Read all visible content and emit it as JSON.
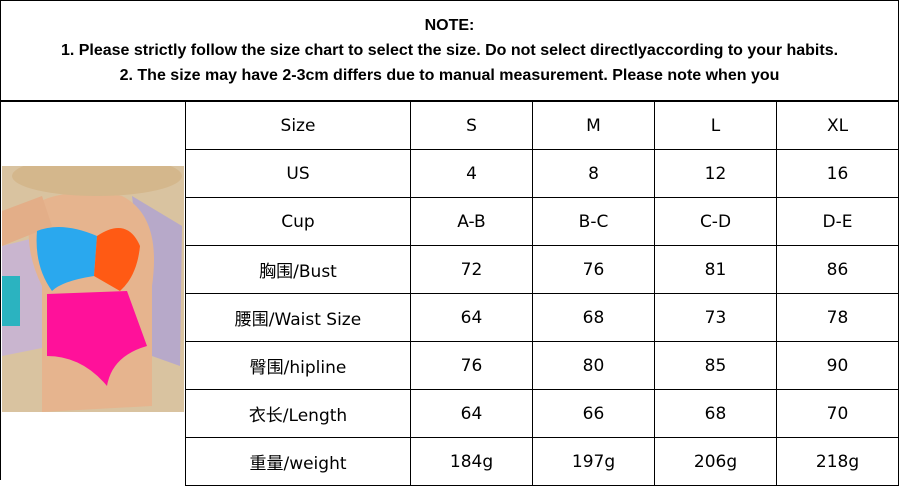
{
  "note": {
    "title": "NOTE:",
    "line1": "1. Please strictly follow the size chart to select the size. Do not select directlyaccording to your habits.",
    "line2": "2. The size may have 2-3cm differs due to manual measurement. Please note when you"
  },
  "photo": {
    "subject": "model-in-colorblock-swimsuit",
    "colors": {
      "blue": "#2aa8ee",
      "orange": "#ff5a14",
      "pink": "#ff119a",
      "sand": "#d9c3a0"
    }
  },
  "table": {
    "rows": [
      [
        "Size",
        "S",
        "M",
        "L",
        "XL"
      ],
      [
        "US",
        "4",
        "8",
        "12",
        "16"
      ],
      [
        "Cup",
        "A-B",
        "B-C",
        "C-D",
        "D-E"
      ],
      [
        "胸围/Bust",
        "72",
        "76",
        "81",
        "86"
      ],
      [
        "腰围/Waist Size",
        "64",
        "68",
        "73",
        "78"
      ],
      [
        "臀围/hipline",
        "76",
        "80",
        "85",
        "90"
      ],
      [
        "衣长/Length",
        "64",
        "66",
        "68",
        "70"
      ],
      [
        "重量/weight",
        "184g",
        "197g",
        "206g",
        "218g"
      ]
    ]
  }
}
